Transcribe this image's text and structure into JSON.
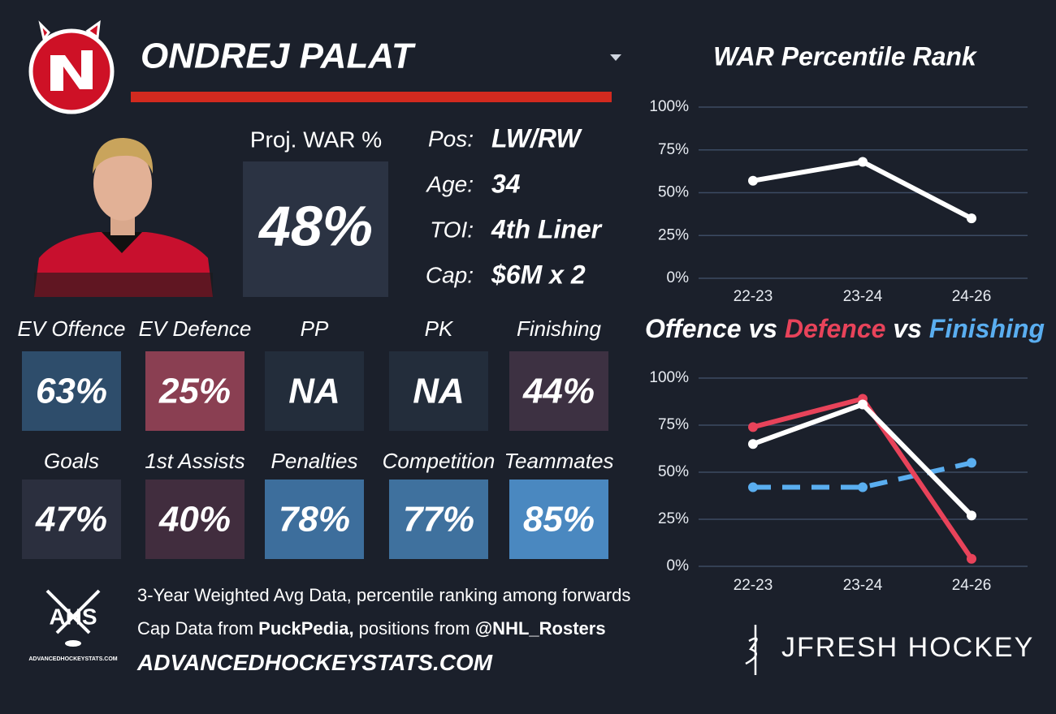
{
  "header": {
    "player": "ONDREJ PALAT"
  },
  "war": {
    "label": "Proj. WAR %",
    "value": "48%"
  },
  "bio": [
    {
      "label": "Pos:",
      "value": "LW/RW"
    },
    {
      "label": "Age:",
      "value": "34"
    },
    {
      "label": "TOI:",
      "value": "4th Liner"
    },
    {
      "label": "Cap:",
      "value": "$6M x 2"
    }
  ],
  "tiles": [
    {
      "label": "EV Offence",
      "value": "63%",
      "color": "#2e4d6b"
    },
    {
      "label": "EV Defence",
      "value": "25%",
      "color": "#8a3f52"
    },
    {
      "label": "PP",
      "value": "NA",
      "color": "#232d3b"
    },
    {
      "label": "PK",
      "value": "NA",
      "color": "#232d3b"
    },
    {
      "label": "Finishing",
      "value": "44%",
      "color": "#3d3142"
    },
    {
      "label": "Goals",
      "value": "47%",
      "color": "#2b2f3e"
    },
    {
      "label": "1st Assists",
      "value": "40%",
      "color": "#412d3e"
    },
    {
      "label": "Penalties",
      "value": "78%",
      "color": "#3d6e9c"
    },
    {
      "label": "Competition",
      "value": "77%",
      "color": "#3f719e"
    },
    {
      "label": "Teammates",
      "value": "85%",
      "color": "#4a88c0"
    }
  ],
  "footer": {
    "lines": [
      [
        {
          "text": "3-Year Weighted Avg Data, percentile ranking among forwards"
        }
      ],
      [
        {
          "text": "Cap Data from "
        },
        {
          "text": "PuckPedia,",
          "bold": true
        },
        {
          "text": " positions from "
        },
        {
          "text": "@NHL_Rosters",
          "bold": true
        }
      ],
      [
        {
          "text": "ADVANCEDHOCKEYSTATS.COM",
          "bold": true
        }
      ]
    ],
    "ahs_logo": "AHS",
    "ahs_site": "ADVANCEDHOCKEYSTATS.COM",
    "brand": "JFRESH HOCKEY"
  },
  "chart_data": [
    {
      "type": "line",
      "title": "WAR Percentile Rank",
      "categories": [
        "22-23",
        "23-24",
        "24-26"
      ],
      "values": [
        57,
        68,
        35
      ],
      "color": "#ffffff",
      "ylim": [
        0,
        100
      ],
      "yticks": [
        {
          "value": 0,
          "label": "0%"
        },
        {
          "value": 25,
          "label": "25%"
        },
        {
          "value": 50,
          "label": "50%"
        },
        {
          "value": 75,
          "label": "75%"
        },
        {
          "value": 100,
          "label": "100%"
        }
      ],
      "grid": true
    },
    {
      "type": "line",
      "title_separator": "vs",
      "categories": [
        "22-23",
        "23-24",
        "24-26"
      ],
      "series": [
        {
          "name": "Offence",
          "color": "#ffffff",
          "values": [
            65,
            86,
            27
          ]
        },
        {
          "name": "Defence",
          "color": "#e8435a",
          "values": [
            74,
            89,
            4
          ]
        },
        {
          "name": "Finishing",
          "color": "#5aaef0",
          "values": [
            42,
            42,
            55
          ],
          "dashed": true
        }
      ],
      "ylim": [
        0,
        100
      ],
      "yticks": [
        {
          "value": 0,
          "label": "0%"
        },
        {
          "value": 25,
          "label": "25%"
        },
        {
          "value": 50,
          "label": "50%"
        },
        {
          "value": 75,
          "label": "75%"
        },
        {
          "value": 100,
          "label": "100%"
        }
      ],
      "grid": true
    }
  ]
}
